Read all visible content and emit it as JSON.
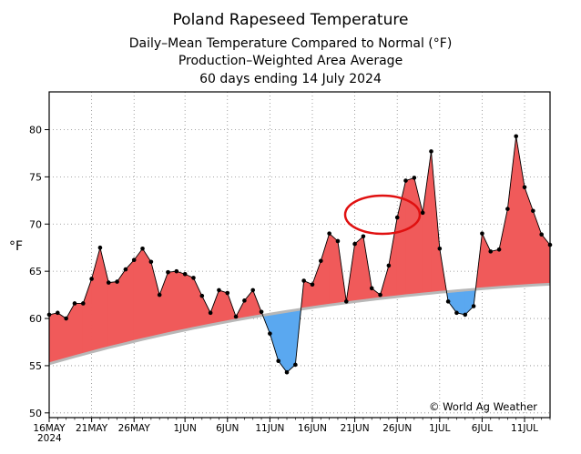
{
  "chart_data": {
    "type": "area",
    "title": "Poland Rapeseed Temperature",
    "subtitle_lines": [
      "Daily–Mean Temperature Compared to Normal (°F)",
      "Production–Weighted Area Average",
      "60 days ending 14 July 2024"
    ],
    "ylabel": "°F",
    "ylim": [
      49.5,
      84
    ],
    "yticks": [
      50,
      55,
      60,
      65,
      70,
      75,
      80
    ],
    "xlim": [
      0,
      59
    ],
    "xticks": [
      {
        "x": 0,
        "label": "16MAY"
      },
      {
        "x": 5,
        "label": "21MAY"
      },
      {
        "x": 10,
        "label": "26MAY"
      },
      {
        "x": 16,
        "label": "1JUN"
      },
      {
        "x": 21,
        "label": "6JUN"
      },
      {
        "x": 26,
        "label": "11JUN"
      },
      {
        "x": 31,
        "label": "16JUN"
      },
      {
        "x": 36,
        "label": "21JUN"
      },
      {
        "x": 41,
        "label": "26JUN"
      },
      {
        "x": 46,
        "label": "1JUL"
      },
      {
        "x": 51,
        "label": "6JUL"
      },
      {
        "x": 56,
        "label": "11JUL"
      }
    ],
    "year_label": "2024",
    "series": [
      {
        "name": "Daily Mean",
        "color": "#000000",
        "values": [
          60.4,
          60.6,
          60.0,
          61.6,
          61.6,
          64.2,
          67.5,
          63.8,
          63.9,
          65.2,
          66.2,
          67.4,
          66.0,
          62.5,
          64.9,
          65.0,
          64.7,
          64.3,
          62.4,
          60.6,
          63.0,
          62.7,
          60.2,
          61.9,
          63.0,
          60.7,
          58.4,
          55.5,
          54.3,
          55.1,
          64.0,
          63.6,
          66.1,
          69.0,
          68.2,
          61.8,
          67.9,
          68.7,
          63.2,
          62.5,
          65.6,
          70.7,
          74.6,
          74.9,
          71.2,
          77.7,
          67.4,
          61.8,
          60.6,
          60.4,
          61.3,
          69.0,
          67.1,
          67.3,
          71.6,
          79.3,
          73.9,
          71.4,
          68.9,
          67.8
        ]
      },
      {
        "name": "Normal",
        "color": "#b8b8b8",
        "values": [
          55.2,
          55.46,
          55.71,
          55.96,
          56.2,
          56.44,
          56.68,
          56.91,
          57.13,
          57.35,
          57.57,
          57.78,
          57.99,
          58.19,
          58.39,
          58.58,
          58.77,
          58.96,
          59.14,
          59.32,
          59.49,
          59.66,
          59.83,
          59.99,
          60.15,
          60.31,
          60.46,
          60.61,
          60.75,
          60.89,
          61.03,
          61.16,
          61.29,
          61.42,
          61.54,
          61.66,
          61.78,
          61.89,
          62.0,
          62.11,
          62.21,
          62.31,
          62.41,
          62.5,
          62.59,
          62.68,
          62.77,
          62.85,
          62.93,
          63.01,
          63.08,
          63.15,
          63.22,
          63.29,
          63.35,
          63.41,
          63.47,
          63.53,
          63.58,
          63.63
        ]
      }
    ],
    "fill_above_color": "#f05a5a",
    "fill_below_color": "#5aa8f0",
    "annotation": "© World Ag Weather",
    "highlight_ellipse_color": "#e01010"
  }
}
